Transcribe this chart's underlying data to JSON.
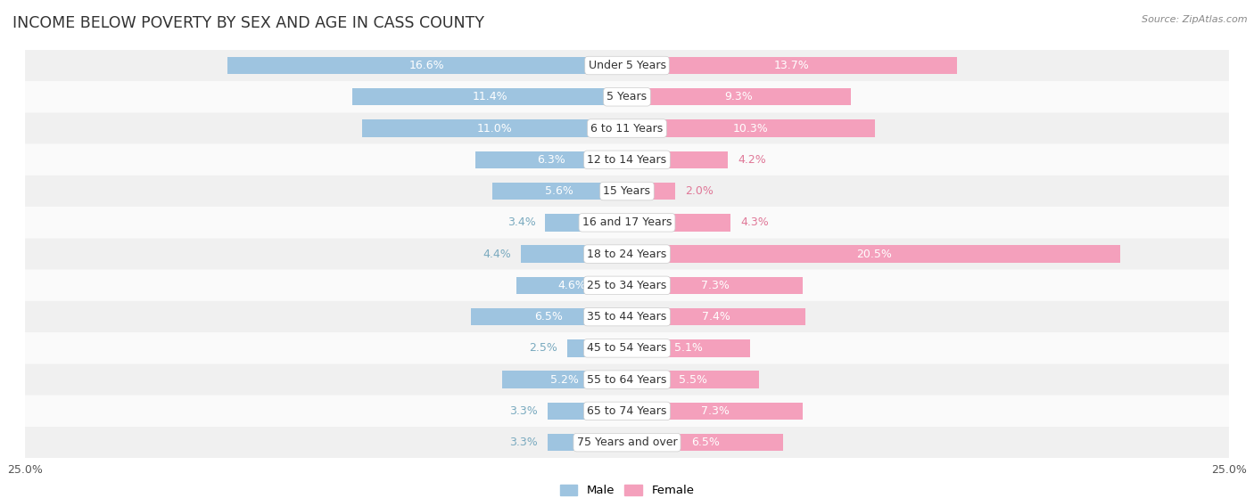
{
  "title": "INCOME BELOW POVERTY BY SEX AND AGE IN CASS COUNTY",
  "source": "Source: ZipAtlas.com",
  "categories": [
    "Under 5 Years",
    "5 Years",
    "6 to 11 Years",
    "12 to 14 Years",
    "15 Years",
    "16 and 17 Years",
    "18 to 24 Years",
    "25 to 34 Years",
    "35 to 44 Years",
    "45 to 54 Years",
    "55 to 64 Years",
    "65 to 74 Years",
    "75 Years and over"
  ],
  "male_values": [
    16.6,
    11.4,
    11.0,
    6.3,
    5.6,
    3.4,
    4.4,
    4.6,
    6.5,
    2.5,
    5.2,
    3.3,
    3.3
  ],
  "female_values": [
    13.7,
    9.3,
    10.3,
    4.2,
    2.0,
    4.3,
    20.5,
    7.3,
    7.4,
    5.1,
    5.5,
    7.3,
    6.5
  ],
  "male_color": "#9ec4e0",
  "female_color": "#f4a0bc",
  "male_text_inside": "#ffffff",
  "female_text_inside": "#ffffff",
  "male_text_outside": "#7aaabf",
  "female_text_outside": "#e07898",
  "row_colors": [
    "#f0f0f0",
    "#fafafa"
  ],
  "xlim": 25.0,
  "bar_height": 0.55,
  "title_fontsize": 12.5,
  "label_fontsize": 9.0,
  "tick_fontsize": 9.0,
  "category_fontsize": 9.0,
  "inside_label_threshold": 4.5
}
